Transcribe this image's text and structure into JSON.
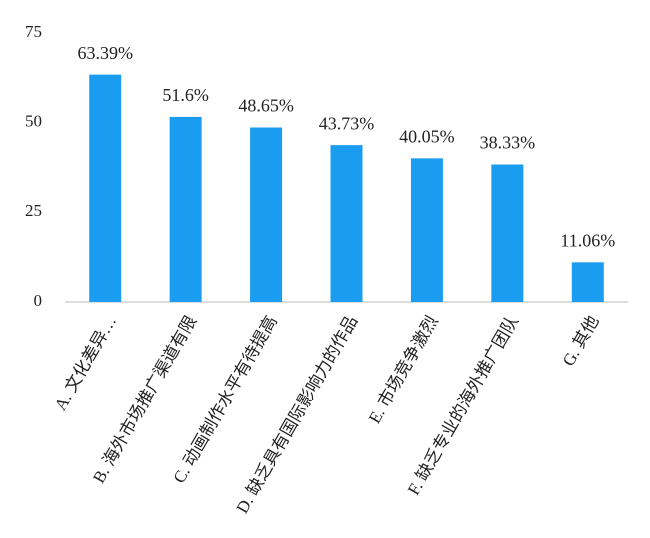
{
  "chart_data": {
    "type": "bar",
    "categories": [
      "A. 文化差异…",
      "B. 海外市场推广渠道有限",
      "C. 动画制作水平有待提高",
      "D. 缺乏具有国际影响力的作品",
      "E. 市场竞争激烈",
      "F. 缺乏专业的海外推广团队",
      "G. 其他"
    ],
    "values": [
      63.39,
      51.6,
      48.65,
      43.73,
      40.05,
      38.33,
      11.06
    ],
    "value_labels": [
      "63.39%",
      "51.6%",
      "48.65%",
      "43.73%",
      "40.05%",
      "38.33%",
      "11.06%"
    ],
    "color": "#1a9cf0",
    "ylim": [
      0,
      75
    ],
    "yticks": [
      0,
      25,
      50,
      75
    ],
    "grid": false
  }
}
